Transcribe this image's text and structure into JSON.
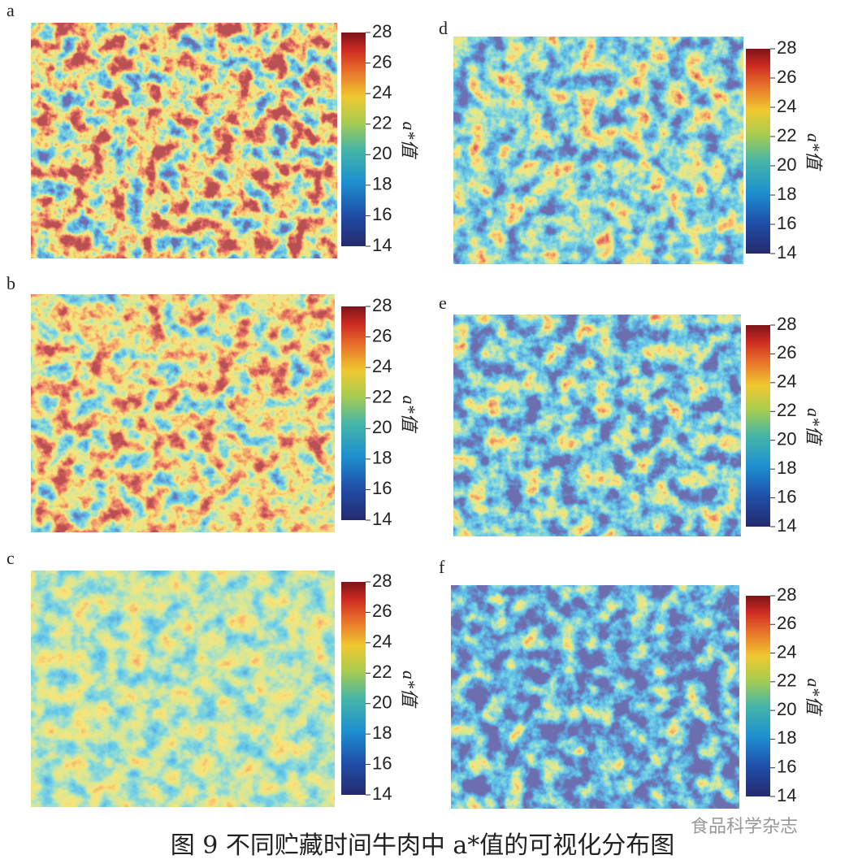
{
  "chart_data": [
    {
      "type": "heatmap",
      "label": "a",
      "colorbar": {
        "label": "a*值",
        "lim": [
          14,
          28
        ],
        "ticks": [
          14,
          16,
          18,
          20,
          22,
          24,
          26,
          28
        ]
      }
    },
    {
      "type": "heatmap",
      "label": "b",
      "colorbar": {
        "label": "a*值",
        "lim": [
          14,
          28
        ],
        "ticks": [
          14,
          16,
          18,
          20,
          22,
          24,
          26,
          28
        ]
      }
    },
    {
      "type": "heatmap",
      "label": "c",
      "colorbar": {
        "label": "a*值",
        "lim": [
          14,
          28
        ],
        "ticks": [
          14,
          16,
          18,
          20,
          22,
          24,
          26,
          28
        ]
      }
    },
    {
      "type": "heatmap",
      "label": "d",
      "colorbar": {
        "label": "a*值",
        "lim": [
          14,
          28
        ],
        "ticks": [
          14,
          16,
          18,
          20,
          22,
          24,
          26,
          28
        ]
      }
    },
    {
      "type": "heatmap",
      "label": "e",
      "colorbar": {
        "label": "a*值",
        "lim": [
          14,
          28
        ],
        "ticks": [
          14,
          16,
          18,
          20,
          22,
          24,
          26,
          28
        ]
      }
    },
    {
      "type": "heatmap",
      "label": "f",
      "colorbar": {
        "label": "a*值",
        "lim": [
          14,
          28
        ],
        "ticks": [
          14,
          16,
          18,
          20,
          22,
          24,
          26,
          28
        ]
      }
    }
  ],
  "caption": "图 9 不同贮藏时间牛肉中 a*值的可视化分布图",
  "watermark": "食品科学杂志"
}
